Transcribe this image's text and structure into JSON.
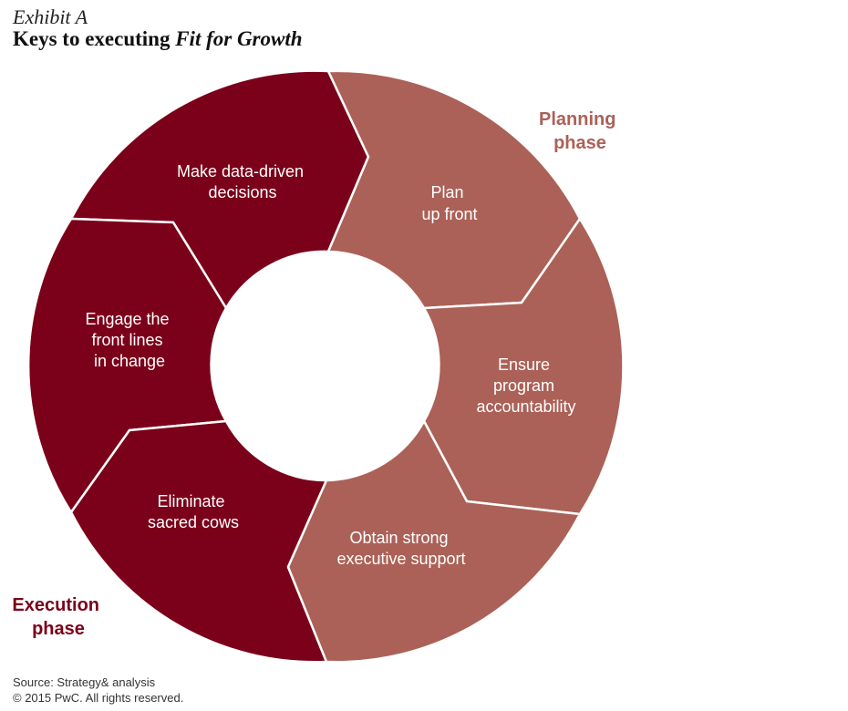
{
  "header": {
    "exhibit": "Exhibit A",
    "title_prefix": "Keys to executing ",
    "title_emphasis": "Fit for Growth"
  },
  "colors": {
    "execution": "#7b0019",
    "planning": "#ab6157",
    "divider": "#ffffff"
  },
  "planning_phase": {
    "label_line1": "Planning",
    "label_line2": "phase",
    "segments": [
      {
        "line1": "Plan",
        "line2": "up front"
      },
      {
        "line1": "Ensure",
        "line2": "program",
        "line3": "accountability"
      },
      {
        "line1": "Obtain strong",
        "line2": "executive support"
      }
    ]
  },
  "execution_phase": {
    "label_line1": "Execution",
    "label_line2": "phase",
    "segments": [
      {
        "line1": "Eliminate",
        "line2": "sacred cows"
      },
      {
        "line1": "Engage the",
        "line2": "front lines",
        "line3": "in change"
      },
      {
        "line1": "Make data-driven",
        "line2": "decisions"
      }
    ]
  },
  "footer": {
    "source": "Source: Strategy& analysis",
    "copyright": "© 2015 PwC. All rights reserved."
  }
}
